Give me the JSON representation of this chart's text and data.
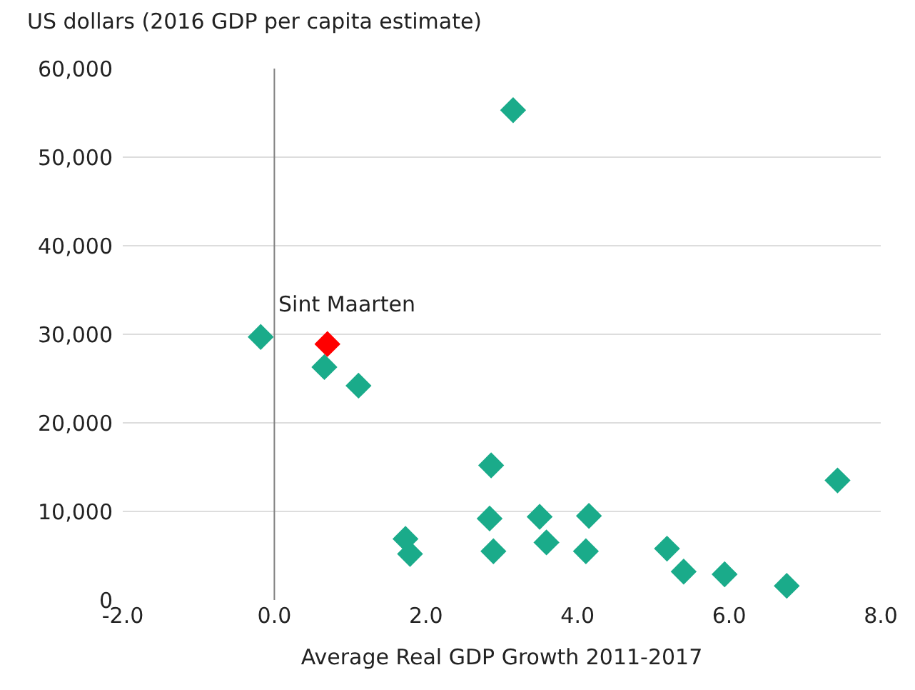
{
  "chart_data": {
    "type": "scatter",
    "ylabel": "US dollars (2016 GDP per capita estimate)",
    "xlabel": "Average Real GDP Growth 2011-2017",
    "series": [
      {
        "color": "#1aab8a",
        "x": [
          -0.18,
          0.66,
          1.11,
          3.15,
          2.86,
          1.73,
          1.79,
          2.84,
          2.89,
          3.5,
          3.59,
          4.15,
          4.11,
          5.18,
          5.4,
          5.94,
          6.76,
          7.43
        ],
        "values": [
          29700,
          26300,
          24200,
          55300,
          15200,
          6900,
          5200,
          9200,
          5500,
          9400,
          6500,
          9500,
          5500,
          5800,
          3200,
          2900,
          1600,
          13500
        ]
      },
      {
        "color": "#ff0000",
        "x": [
          0.7
        ],
        "values": [
          28900
        ]
      }
    ],
    "annotations": [
      {
        "text": "Sint Maarten",
        "x": 0.7,
        "y": 28900
      }
    ],
    "xlim": [
      -2,
      8
    ],
    "xticks": [
      {
        "value": -2,
        "label": "-2.0"
      },
      {
        "value": 0,
        "label": "0.0"
      },
      {
        "value": 2,
        "label": "2.0"
      },
      {
        "value": 4,
        "label": "4.0"
      },
      {
        "value": 6,
        "label": "6.0"
      },
      {
        "value": 8,
        "label": "8.0"
      }
    ],
    "ylim": [
      0,
      60000
    ],
    "yticks": [
      {
        "value": 0,
        "label": "0"
      },
      {
        "value": 10000,
        "label": "10,000"
      },
      {
        "value": 20000,
        "label": "20,000"
      },
      {
        "value": 30000,
        "label": "30,000"
      },
      {
        "value": 40000,
        "label": "40,000"
      },
      {
        "value": 50000,
        "label": "50,000"
      },
      {
        "value": 60000,
        "label": "60,000"
      }
    ],
    "ref_lines": [
      {
        "axis": "x",
        "value": 0,
        "color": "#808080"
      }
    ],
    "grid": "y",
    "marker": "diamond"
  }
}
